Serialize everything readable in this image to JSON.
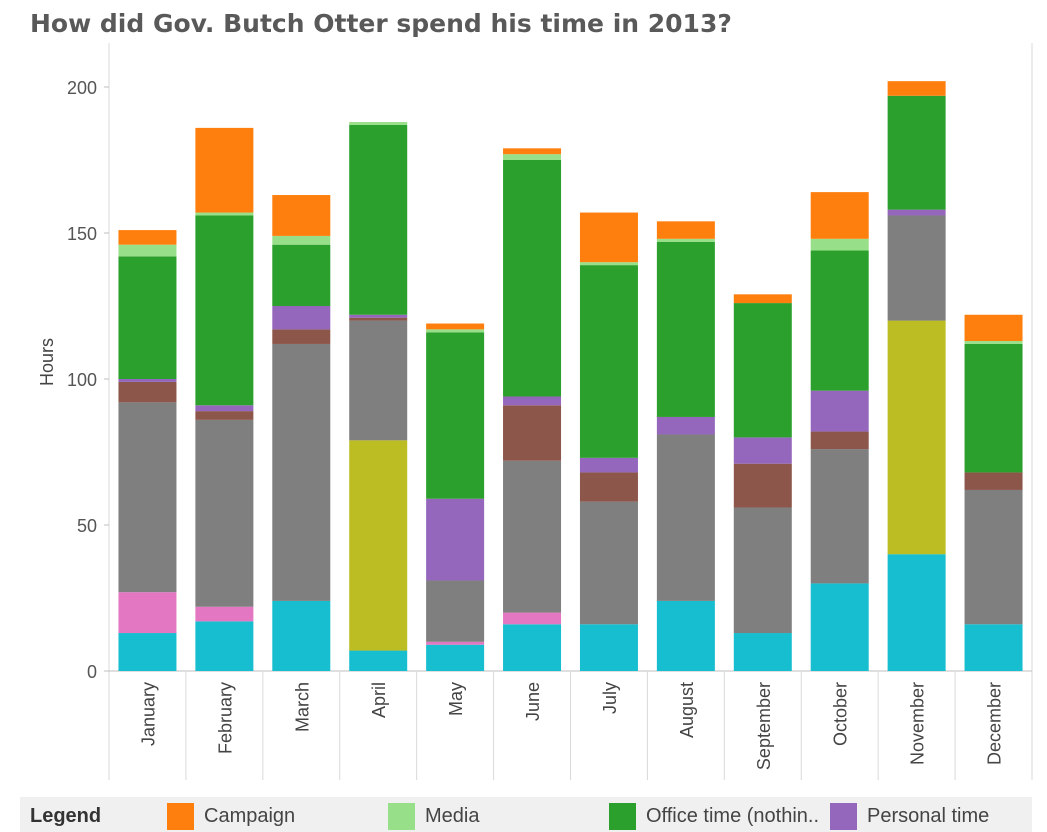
{
  "chart_data": {
    "type": "bar",
    "stacked": true,
    "title": "How did Gov. Butch Otter spend his time in 2013?",
    "xlabel": "",
    "ylabel": "Hours",
    "ylim": [
      0,
      200
    ],
    "yticks": [
      0,
      50,
      100,
      150,
      200
    ],
    "grid": false,
    "legend_position": "bottom",
    "legend_title": "Legend",
    "categories": [
      "January",
      "February",
      "March",
      "April",
      "May",
      "June",
      "July",
      "August",
      "September",
      "October",
      "November",
      "December"
    ],
    "series": [
      {
        "name": "",
        "color": "#17becf",
        "values": [
          13,
          17,
          24,
          7,
          9,
          16,
          16,
          24,
          13,
          30,
          40,
          16
        ]
      },
      {
        "name": "",
        "color": "#e377c2",
        "values": [
          14,
          5,
          0,
          0,
          1,
          4,
          0,
          0,
          0,
          0,
          0,
          0
        ]
      },
      {
        "name": "",
        "color": "#bcbd22",
        "values": [
          0,
          0,
          0,
          72,
          0,
          0,
          0,
          0,
          0,
          0,
          80,
          0
        ]
      },
      {
        "name": "",
        "color": "#7f7f7f",
        "values": [
          65,
          64,
          88,
          41,
          21,
          52,
          42,
          57,
          43,
          46,
          36,
          46
        ]
      },
      {
        "name": "",
        "color": "#8c564b",
        "values": [
          7,
          3,
          5,
          1,
          0,
          19,
          10,
          0,
          15,
          6,
          0,
          6
        ]
      },
      {
        "name": "Personal time",
        "color": "#9467bd",
        "values": [
          1,
          2,
          8,
          1,
          28,
          3,
          5,
          6,
          9,
          14,
          2,
          0
        ]
      },
      {
        "name": "Office time (nothin..",
        "color": "#2ca02c",
        "values": [
          42,
          65,
          21,
          65,
          57,
          81,
          66,
          60,
          46,
          48,
          39,
          44
        ]
      },
      {
        "name": "Media",
        "color": "#98df8a",
        "values": [
          4,
          1,
          3,
          1,
          1,
          2,
          1,
          1,
          0,
          4,
          0,
          1
        ]
      },
      {
        "name": "Campaign",
        "color": "#ff7f0e",
        "values": [
          5,
          29,
          14,
          0,
          2,
          2,
          17,
          6,
          3,
          16,
          5,
          9
        ]
      }
    ]
  },
  "legend": {
    "title": "Legend",
    "items": [
      {
        "label": "Campaign",
        "color": "#ff7f0e"
      },
      {
        "label": "Media",
        "color": "#98df8a"
      },
      {
        "label": "Office time (nothin..",
        "color": "#2ca02c"
      },
      {
        "label": "Personal time",
        "color": "#9467bd"
      }
    ]
  }
}
